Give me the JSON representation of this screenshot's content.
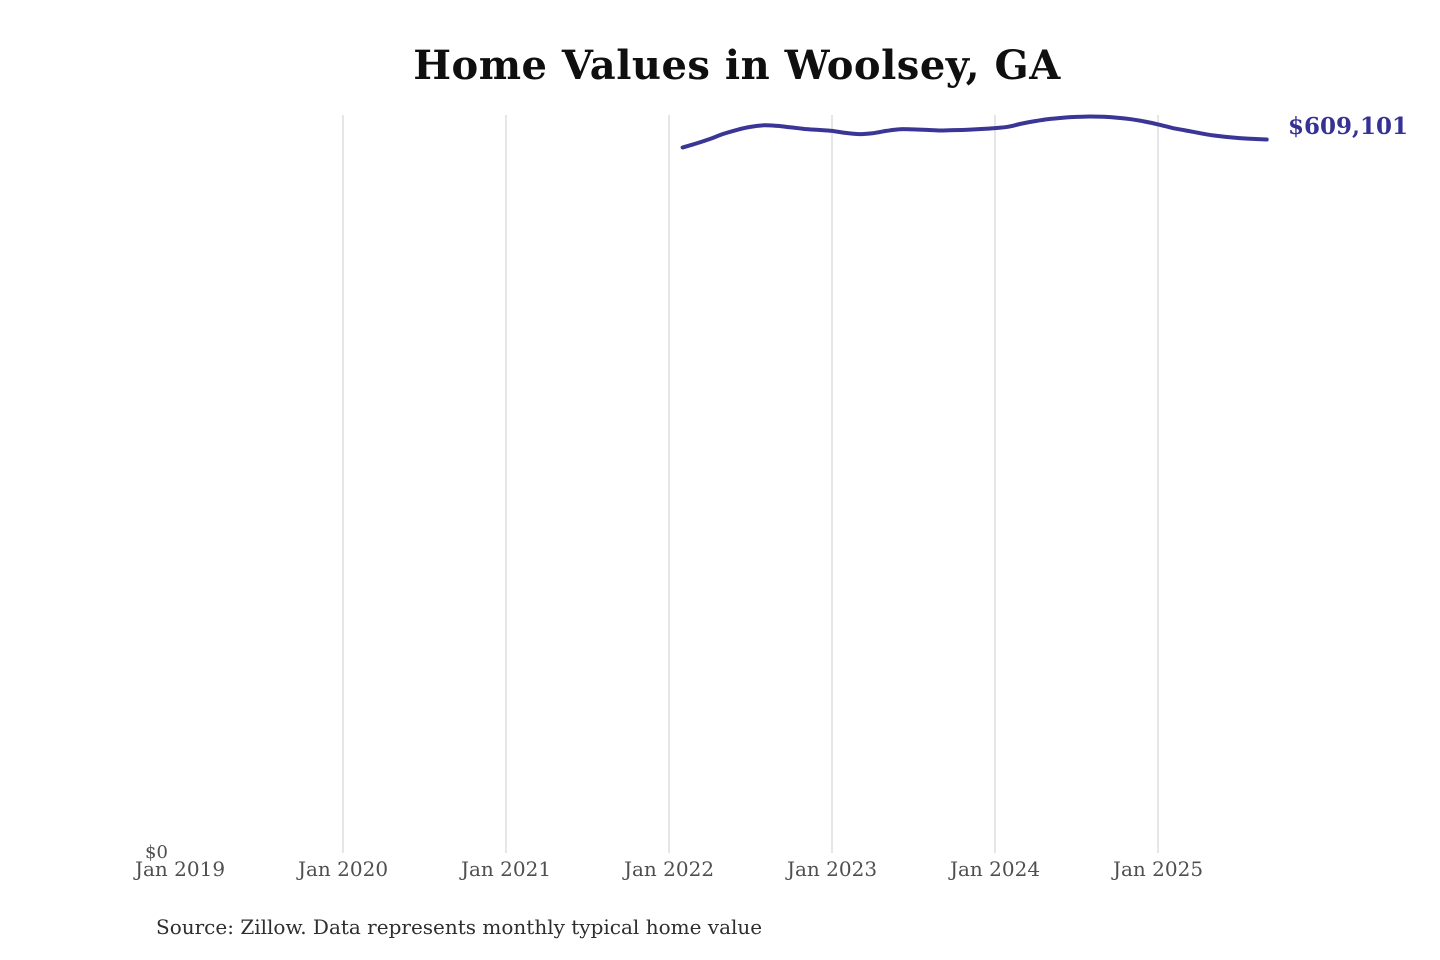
{
  "page": {
    "title": "Home Values in Woolsey, GA",
    "source_note": "Source: Zillow. Data represents monthly typical home value"
  },
  "colors": {
    "line": "#3b3695",
    "end_label_text": "#363295",
    "gridline": "#cccccc",
    "tick_text": "#4f4f4f",
    "title_text": "#0f0f0f",
    "source_text": "#2e2e2e",
    "background": "#ffffff"
  },
  "chart_data": {
    "type": "line",
    "title": "Home Values in Woolsey, GA",
    "legend": "none",
    "grid": "vertical-only",
    "y_axis": {
      "min": 0,
      "min_label": "$0",
      "only_visible_tick": "$0"
    },
    "x_axis": {
      "ticks": [
        {
          "label": "Jan 2019",
          "months_from_start": 0,
          "gridline": false
        },
        {
          "label": "Jan 2020",
          "months_from_start": 12,
          "gridline": true
        },
        {
          "label": "Jan 2021",
          "months_from_start": 24,
          "gridline": true
        },
        {
          "label": "Jan 2022",
          "months_from_start": 36,
          "gridline": true
        },
        {
          "label": "Jan 2023",
          "months_from_start": 48,
          "gridline": true
        },
        {
          "label": "Jan 2024",
          "months_from_start": 60,
          "gridline": true
        },
        {
          "label": "Jan 2025",
          "months_from_start": 72,
          "gridline": true
        }
      ]
    },
    "annotation": {
      "end_label": "$609,101"
    },
    "series": [
      {
        "name": "Monthly typical home value",
        "start_month_offset": 37,
        "months": [
          "Feb 2022",
          "Mar 2022",
          "Apr 2022",
          "May 2022",
          "Jun 2022",
          "Jul 2022",
          "Aug 2022",
          "Sep 2022",
          "Oct 2022",
          "Nov 2022",
          "Dec 2022",
          "Jan 2023",
          "Feb 2023",
          "Mar 2023",
          "Apr 2023",
          "May 2023",
          "Jun 2023",
          "Jul 2023",
          "Aug 2023",
          "Sep 2023",
          "Oct 2023",
          "Nov 2023",
          "Dec 2023",
          "Jan 2024",
          "Feb 2024",
          "Mar 2024",
          "Apr 2024",
          "May 2024",
          "Jun 2024",
          "Jul 2024",
          "Aug 2024",
          "Sep 2024",
          "Oct 2024",
          "Nov 2024",
          "Dec 2024",
          "Jan 2025",
          "Feb 2025",
          "Mar 2025",
          "Apr 2025",
          "May 2025",
          "Jun 2025",
          "Jul 2025",
          "Aug 2025",
          "Sep 2025"
        ],
        "values": [
          602300,
          605700,
          609500,
          613900,
          617300,
          619900,
          621200,
          620700,
          619400,
          618100,
          617300,
          616400,
          614700,
          613700,
          614500,
          616400,
          617900,
          617700,
          617300,
          616800,
          617100,
          617500,
          618100,
          618800,
          620000,
          622800,
          624900,
          626600,
          627700,
          628400,
          628700,
          628500,
          627700,
          626400,
          624500,
          622000,
          619100,
          616900,
          614700,
          612700,
          611300,
          610300,
          609600,
          609101
        ]
      }
    ]
  }
}
